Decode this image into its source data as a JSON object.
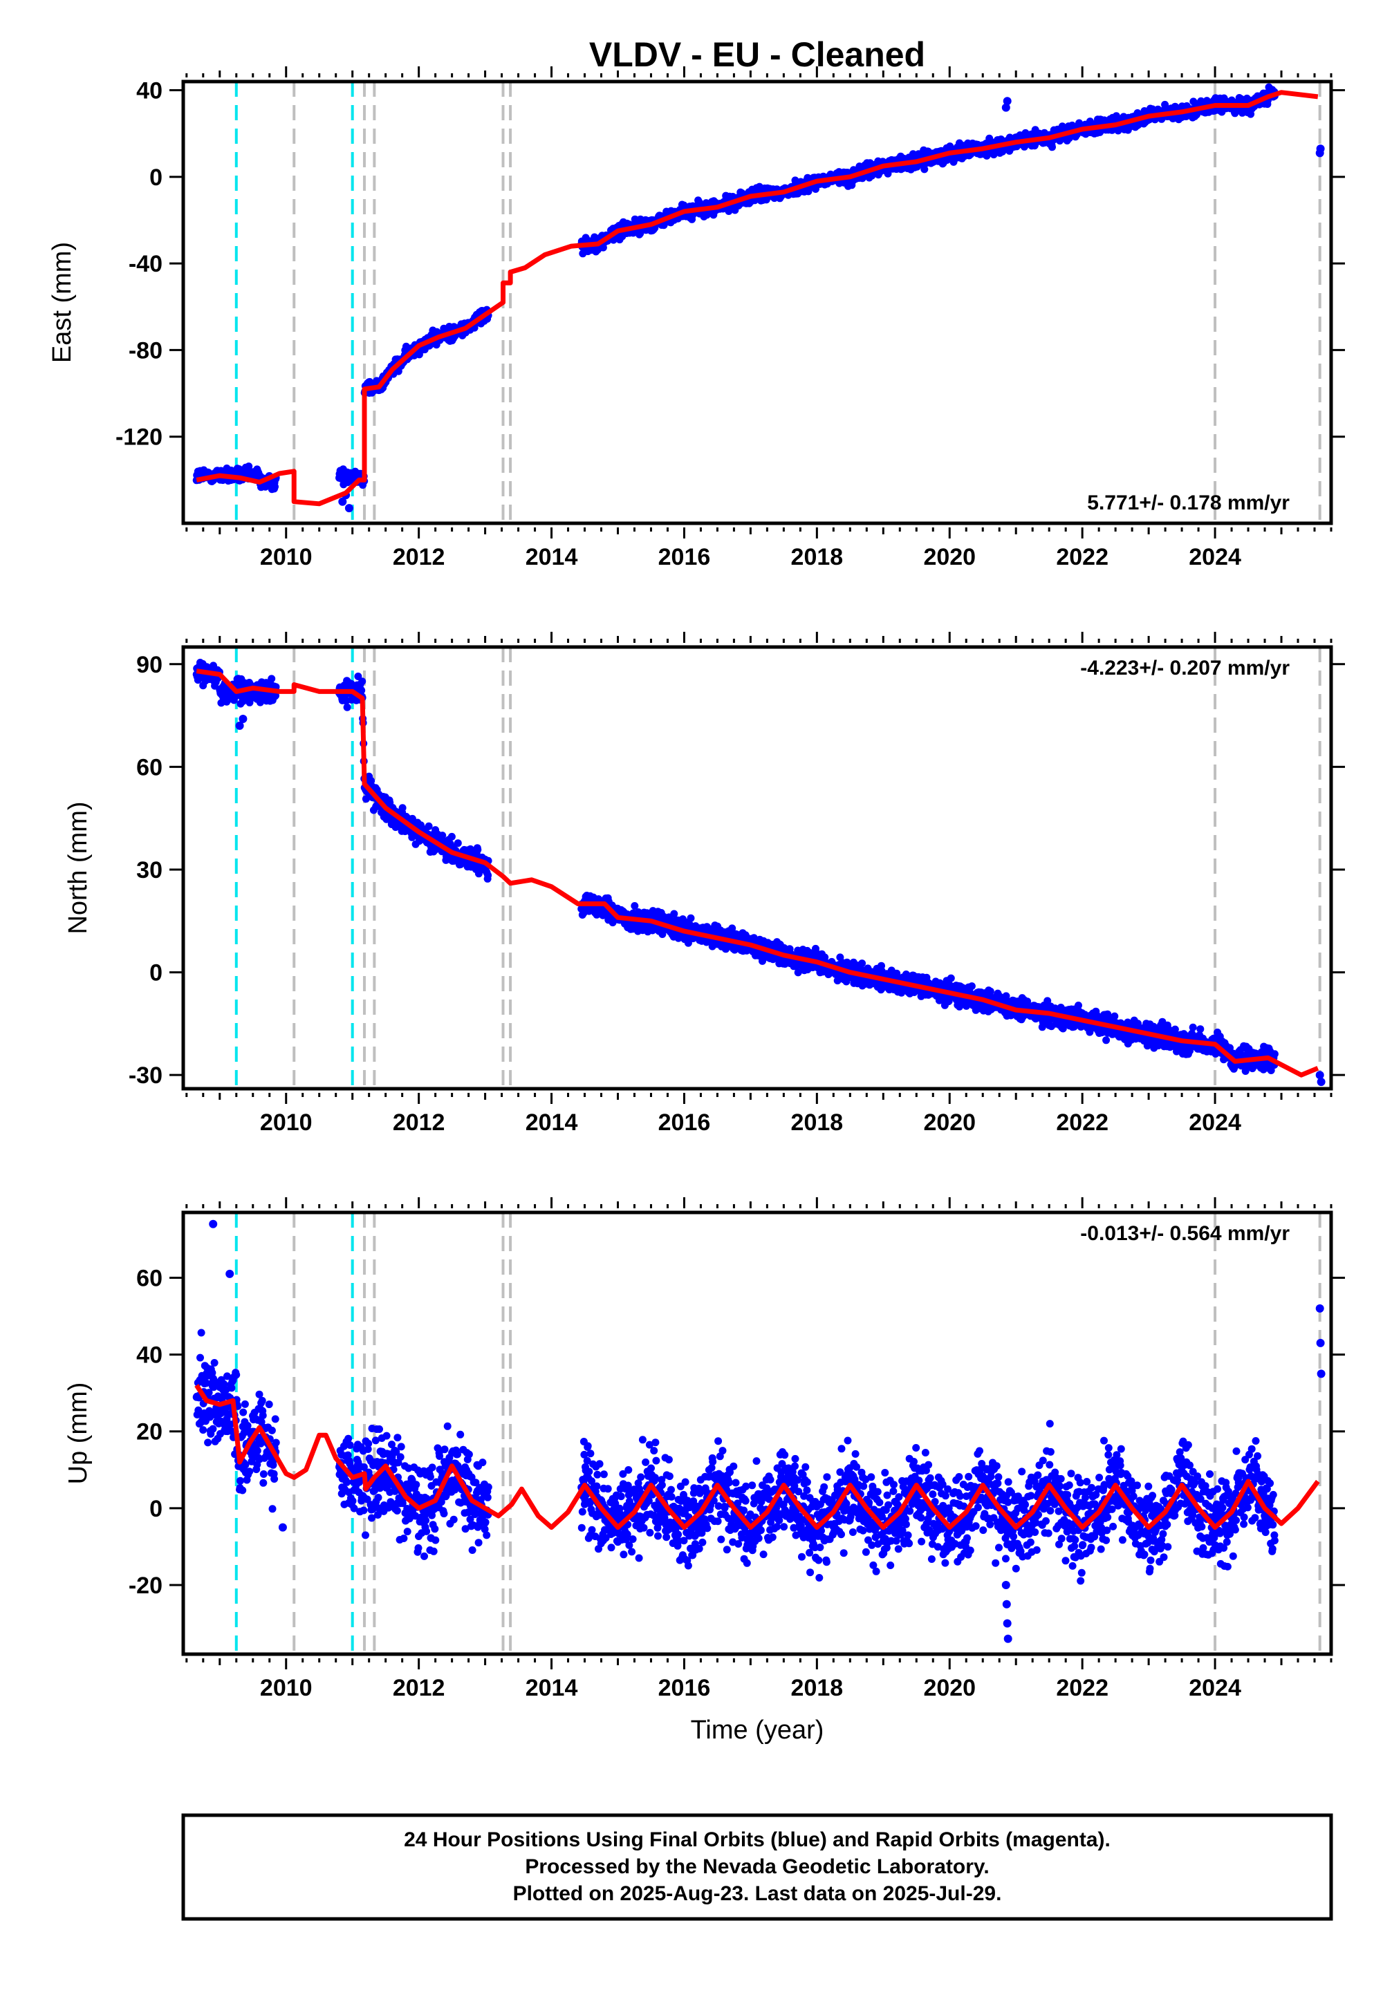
{
  "title": "VLDV  - EU - Cleaned",
  "xlabel": "Time (year)",
  "x_ticks": [
    2010,
    2012,
    2014,
    2016,
    2018,
    2020,
    2022,
    2024
  ],
  "xlim": [
    2008.45,
    2025.75
  ],
  "colors": {
    "data": "#0000ff",
    "model": "#ff0000",
    "cyan": "#00e5ee",
    "gray": "#bfbfbf"
  },
  "caption": {
    "line1": "24 Hour Positions Using Final Orbits (blue) and Rapid Orbits (magenta).",
    "line2": "Processed by the Nevada Geodetic Laboratory.",
    "line3": "Plotted on 2025-Aug-23. Last data on 2025-Jul-29."
  },
  "chart_data": [
    {
      "type": "scatter",
      "ylabel": "East (mm)",
      "ylim": [
        -160,
        44
      ],
      "y_ticks": [
        40,
        0,
        -40,
        -80,
        -120
      ],
      "rate": "5.771+/- 0.178 mm/yr",
      "rate_position": "bottom-right",
      "cyan_lines": [
        2009.25,
        2011.0
      ],
      "gray_lines": [
        2010.12,
        2011.18,
        2011.33,
        2013.27,
        2013.38,
        2024.0,
        2025.58
      ],
      "observations": [
        [
          2008.65,
          2009.6,
          -138
        ],
        [
          2009.6,
          2009.85,
          -141
        ],
        [
          2010.8,
          2011.15,
          -138
        ],
        [
          2011.15,
          2013.05,
          "trend"
        ],
        [
          2014.45,
          2024.9,
          "trend"
        ]
      ],
      "outliers": [
        [
          2010.85,
          -150
        ],
        [
          2010.9,
          -147
        ],
        [
          2010.95,
          -153
        ],
        [
          2012.95,
          -62
        ],
        [
          2020.85,
          32
        ],
        [
          2020.87,
          35
        ],
        [
          2025.58,
          11
        ],
        [
          2025.59,
          13
        ]
      ],
      "model": [
        [
          2008.65,
          -140
        ],
        [
          2009.0,
          -138
        ],
        [
          2009.3,
          -139
        ],
        [
          2009.6,
          -141
        ],
        [
          2009.9,
          -137
        ],
        [
          2010.12,
          -136
        ],
        [
          2010.12,
          -150
        ],
        [
          2010.5,
          -151
        ],
        [
          2010.9,
          -146
        ],
        [
          2011.1,
          -140
        ],
        [
          2011.18,
          -140
        ],
        [
          2011.18,
          -98
        ],
        [
          2011.4,
          -97
        ],
        [
          2011.6,
          -89
        ],
        [
          2012.0,
          -78
        ],
        [
          2012.3,
          -74
        ],
        [
          2012.7,
          -70
        ],
        [
          2013.27,
          -58
        ],
        [
          2013.27,
          -49
        ],
        [
          2013.38,
          -49
        ],
        [
          2013.38,
          -44
        ],
        [
          2013.6,
          -42
        ],
        [
          2013.9,
          -36
        ],
        [
          2014.3,
          -32
        ],
        [
          2014.7,
          -31
        ],
        [
          2015.0,
          -25
        ],
        [
          2015.5,
          -22
        ],
        [
          2016.0,
          -16
        ],
        [
          2016.5,
          -14
        ],
        [
          2017.0,
          -9
        ],
        [
          2017.5,
          -7
        ],
        [
          2018.0,
          -2
        ],
        [
          2018.5,
          0
        ],
        [
          2019.0,
          5
        ],
        [
          2019.5,
          7
        ],
        [
          2020.0,
          11
        ],
        [
          2020.5,
          13
        ],
        [
          2021.0,
          16
        ],
        [
          2021.5,
          18
        ],
        [
          2022.0,
          22
        ],
        [
          2022.5,
          24
        ],
        [
          2023.0,
          28
        ],
        [
          2023.5,
          30
        ],
        [
          2024.0,
          33
        ],
        [
          2024.5,
          33
        ],
        [
          2024.8,
          37
        ],
        [
          2025.0,
          39
        ],
        [
          2025.55,
          37
        ]
      ]
    },
    {
      "type": "scatter",
      "ylabel": "North (mm)",
      "ylim": [
        -34,
        95
      ],
      "y_ticks": [
        90,
        60,
        30,
        0,
        -30
      ],
      "rate": "-4.223+/- 0.207 mm/yr",
      "rate_position": "top-right",
      "cyan_lines": [
        2009.25,
        2011.0
      ],
      "gray_lines": [
        2010.12,
        2011.18,
        2011.33,
        2013.27,
        2013.38,
        2024.0,
        2025.58
      ],
      "observations": [
        [
          2008.65,
          2009.0,
          87
        ],
        [
          2009.0,
          2009.85,
          82
        ],
        [
          2010.8,
          2011.15,
          82
        ],
        [
          2011.15,
          2013.05,
          "trend"
        ],
        [
          2014.45,
          2024.9,
          "trend"
        ]
      ],
      "outliers": [
        [
          2009.3,
          72
        ],
        [
          2009.35,
          74
        ],
        [
          2025.58,
          -30
        ],
        [
          2025.6,
          -32
        ]
      ],
      "model": [
        [
          2008.65,
          88
        ],
        [
          2009.0,
          87
        ],
        [
          2009.25,
          82
        ],
        [
          2009.5,
          83
        ],
        [
          2009.9,
          82
        ],
        [
          2010.12,
          82
        ],
        [
          2010.12,
          84
        ],
        [
          2010.5,
          82
        ],
        [
          2011.0,
          82
        ],
        [
          2011.15,
          80
        ],
        [
          2011.18,
          55
        ],
        [
          2011.5,
          48
        ],
        [
          2012.0,
          41
        ],
        [
          2012.5,
          35
        ],
        [
          2013.0,
          32
        ],
        [
          2013.27,
          28
        ],
        [
          2013.38,
          26
        ],
        [
          2013.7,
          27
        ],
        [
          2014.0,
          25
        ],
        [
          2014.4,
          20
        ],
        [
          2014.8,
          20
        ],
        [
          2015.0,
          16
        ],
        [
          2015.5,
          15
        ],
        [
          2016.0,
          12
        ],
        [
          2016.5,
          10
        ],
        [
          2017.0,
          8
        ],
        [
          2017.5,
          5
        ],
        [
          2018.0,
          3
        ],
        [
          2018.5,
          0
        ],
        [
          2019.0,
          -2
        ],
        [
          2019.5,
          -4
        ],
        [
          2020.0,
          -6
        ],
        [
          2020.5,
          -8
        ],
        [
          2021.0,
          -11
        ],
        [
          2021.5,
          -12
        ],
        [
          2022.0,
          -14
        ],
        [
          2022.5,
          -16
        ],
        [
          2023.0,
          -18
        ],
        [
          2023.5,
          -20
        ],
        [
          2024.0,
          -21
        ],
        [
          2024.3,
          -26
        ],
        [
          2024.8,
          -25
        ],
        [
          2025.3,
          -30
        ],
        [
          2025.55,
          -28
        ]
      ]
    },
    {
      "type": "scatter",
      "ylabel": "Up (mm)",
      "ylim": [
        -38,
        77
      ],
      "y_ticks": [
        60,
        40,
        20,
        0,
        -20
      ],
      "rate": "-0.013+/- 0.564 mm/yr",
      "rate_position": "top-right",
      "cyan_lines": [
        2009.25,
        2011.0
      ],
      "gray_lines": [
        2010.12,
        2011.18,
        2011.33,
        2013.27,
        2013.38,
        2024.0,
        2025.58
      ],
      "observations": [
        [
          2008.65,
          2009.85,
          "trend"
        ],
        [
          2010.8,
          2013.05,
          "trend"
        ],
        [
          2014.45,
          2024.9,
          "trend"
        ]
      ],
      "outliers": [
        [
          2008.9,
          74
        ],
        [
          2009.15,
          61
        ],
        [
          2009.95,
          -5
        ],
        [
          2020.85,
          -20
        ],
        [
          2020.86,
          -25
        ],
        [
          2020.87,
          -30
        ],
        [
          2020.88,
          -34
        ],
        [
          2025.58,
          52
        ],
        [
          2025.59,
          43
        ],
        [
          2025.6,
          35
        ]
      ],
      "model": [
        [
          2008.65,
          32
        ],
        [
          2008.8,
          28
        ],
        [
          2009.0,
          27
        ],
        [
          2009.2,
          28
        ],
        [
          2009.3,
          12
        ],
        [
          2009.45,
          17
        ],
        [
          2009.6,
          21
        ],
        [
          2009.8,
          15
        ],
        [
          2010.0,
          9
        ],
        [
          2010.12,
          8
        ],
        [
          2010.3,
          10
        ],
        [
          2010.5,
          19
        ],
        [
          2010.6,
          19
        ],
        [
          2010.75,
          13
        ],
        [
          2011.0,
          8
        ],
        [
          2011.18,
          9
        ],
        [
          2011.2,
          5
        ],
        [
          2011.33,
          8
        ],
        [
          2011.5,
          11
        ],
        [
          2011.8,
          3
        ],
        [
          2012.0,
          0
        ],
        [
          2012.25,
          2
        ],
        [
          2012.5,
          11
        ],
        [
          2012.8,
          2
        ],
        [
          2013.0,
          0
        ],
        [
          2013.2,
          -2
        ],
        [
          2013.4,
          1
        ],
        [
          2013.55,
          5
        ],
        [
          2013.8,
          -2
        ],
        [
          2014.0,
          -5
        ],
        [
          2014.25,
          -1
        ],
        [
          2014.5,
          6
        ],
        [
          2014.75,
          0
        ],
        [
          2015.0,
          -5
        ],
        [
          2015.25,
          -1
        ],
        [
          2015.5,
          6
        ],
        [
          2015.75,
          0
        ],
        [
          2016.0,
          -5
        ],
        [
          2016.25,
          -1
        ],
        [
          2016.5,
          6
        ],
        [
          2016.75,
          0
        ],
        [
          2017.0,
          -5
        ],
        [
          2017.25,
          -1
        ],
        [
          2017.5,
          6
        ],
        [
          2017.75,
          0
        ],
        [
          2018.0,
          -5
        ],
        [
          2018.25,
          -1
        ],
        [
          2018.5,
          6
        ],
        [
          2018.75,
          0
        ],
        [
          2019.0,
          -5
        ],
        [
          2019.25,
          -1
        ],
        [
          2019.5,
          6
        ],
        [
          2019.75,
          0
        ],
        [
          2020.0,
          -5
        ],
        [
          2020.25,
          -1
        ],
        [
          2020.5,
          6
        ],
        [
          2020.75,
          0
        ],
        [
          2021.0,
          -5
        ],
        [
          2021.25,
          -1
        ],
        [
          2021.5,
          6
        ],
        [
          2021.75,
          0
        ],
        [
          2022.0,
          -5
        ],
        [
          2022.25,
          -1
        ],
        [
          2022.5,
          6
        ],
        [
          2022.75,
          0
        ],
        [
          2023.0,
          -5
        ],
        [
          2023.25,
          -1
        ],
        [
          2023.5,
          6
        ],
        [
          2023.75,
          0
        ],
        [
          2024.0,
          -5
        ],
        [
          2024.25,
          -1
        ],
        [
          2024.5,
          7
        ],
        [
          2024.75,
          0
        ],
        [
          2025.0,
          -4
        ],
        [
          2025.25,
          0
        ],
        [
          2025.55,
          7
        ]
      ]
    }
  ]
}
